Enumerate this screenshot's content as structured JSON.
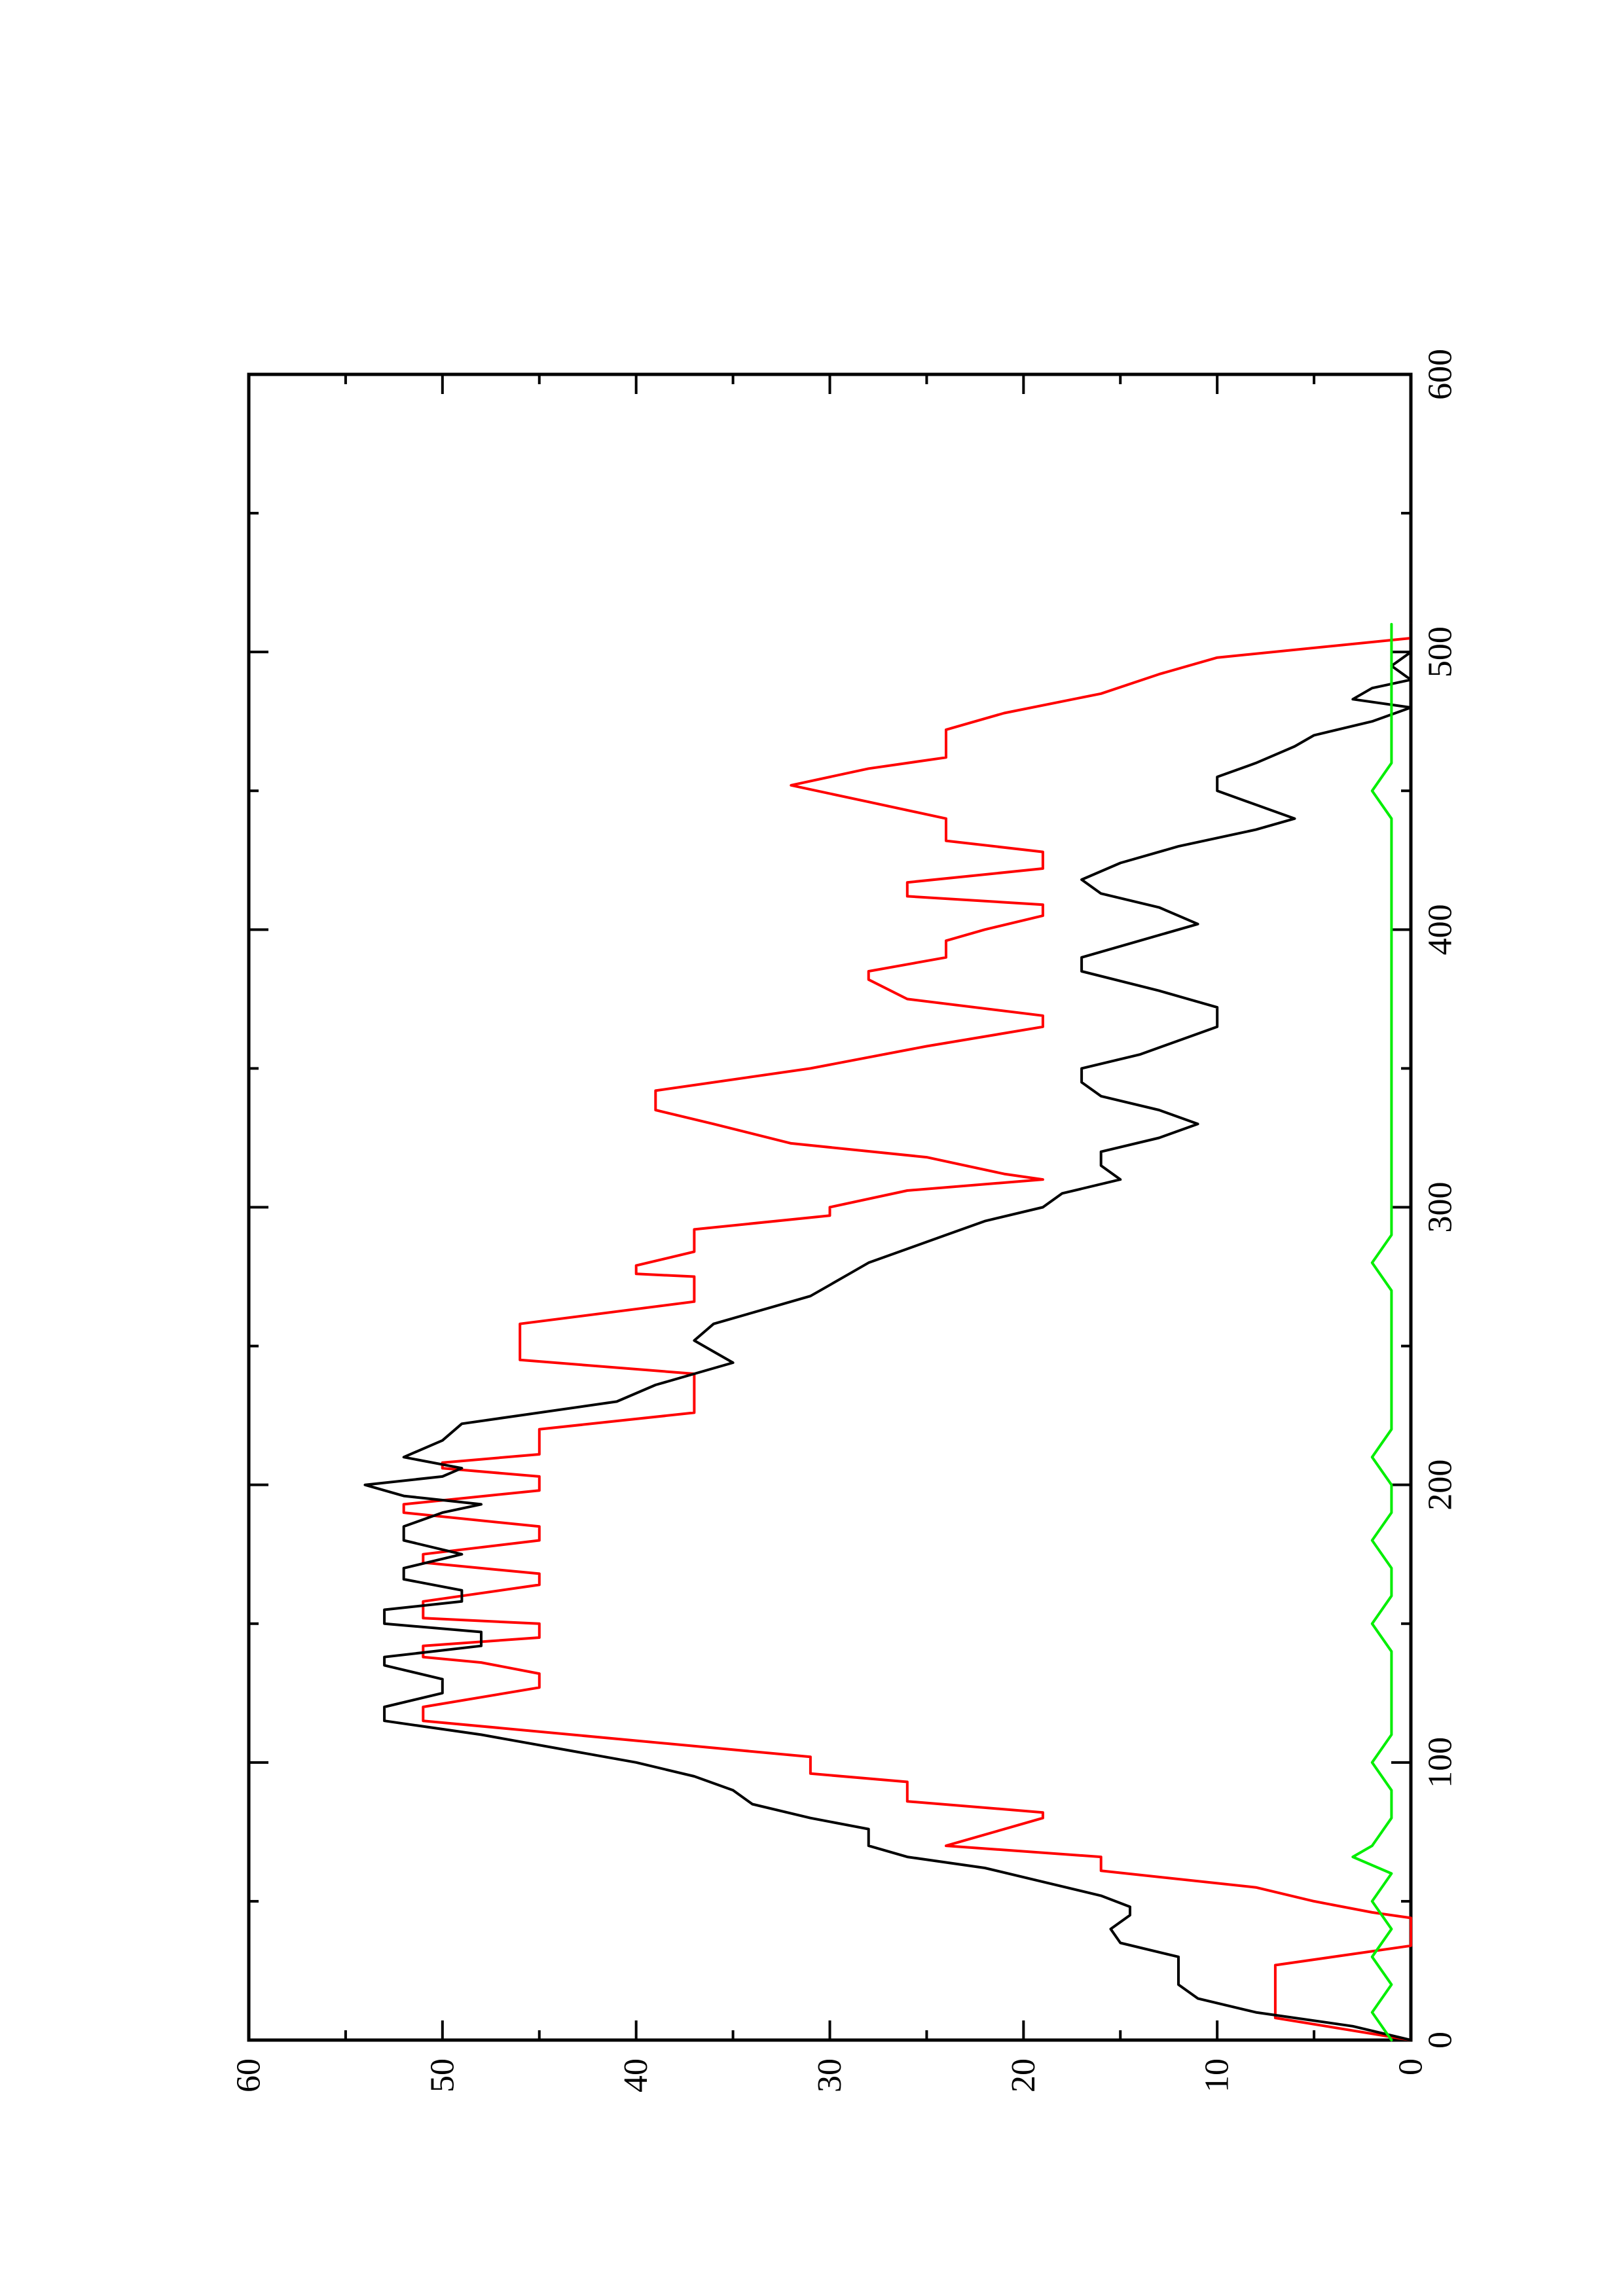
{
  "chart_data": {
    "type": "line",
    "orientation": "rotated-90-counterclockwise",
    "title": "",
    "xlabel": "",
    "ylabel": "",
    "xlim": [
      0,
      600
    ],
    "ylim": [
      0,
      60
    ],
    "x_ticks": [
      0,
      100,
      200,
      300,
      400,
      500,
      600
    ],
    "x_tick_labels": [
      "0",
      "100",
      "200",
      "300",
      "400",
      "500",
      "600"
    ],
    "y_ticks": [
      0,
      10,
      20,
      30,
      40,
      50,
      60
    ],
    "y_tick_labels": [
      "0",
      "10",
      "20",
      "30",
      "40",
      "50",
      "60"
    ],
    "x_minor_ticks": [
      50,
      150,
      250,
      350,
      450,
      550
    ],
    "y_minor_ticks": [
      5,
      15,
      25,
      35,
      45,
      55
    ],
    "grid": false,
    "legend": "none",
    "series": [
      {
        "color": "#ff0000",
        "points": [
          [
            0,
            0
          ],
          [
            8,
            7
          ],
          [
            27,
            7
          ],
          [
            34,
            0
          ],
          [
            44,
            0
          ],
          [
            46,
            2
          ],
          [
            50,
            5
          ],
          [
            55,
            8
          ],
          [
            61,
            16
          ],
          [
            66,
            16
          ],
          [
            70,
            24
          ],
          [
            80,
            19
          ],
          [
            82,
            19
          ],
          [
            86,
            26
          ],
          [
            93,
            26
          ],
          [
            96,
            31
          ],
          [
            102,
            31
          ],
          [
            115,
            51
          ],
          [
            120,
            51
          ],
          [
            127,
            45
          ],
          [
            132,
            45
          ],
          [
            136,
            48
          ],
          [
            138,
            51
          ],
          [
            142,
            51
          ],
          [
            145,
            45
          ],
          [
            150,
            45
          ],
          [
            152,
            51
          ],
          [
            158,
            51
          ],
          [
            164,
            45
          ],
          [
            168,
            45
          ],
          [
            172,
            51
          ],
          [
            175,
            51
          ],
          [
            180,
            45
          ],
          [
            185,
            45
          ],
          [
            190,
            52
          ],
          [
            193,
            52
          ],
          [
            198,
            45
          ],
          [
            203,
            45
          ],
          [
            206,
            50
          ],
          [
            208,
            50
          ],
          [
            211,
            45
          ],
          [
            220,
            45
          ],
          [
            226,
            37
          ],
          [
            240,
            37
          ],
          [
            245,
            46
          ],
          [
            258,
            46
          ],
          [
            266,
            37
          ],
          [
            275,
            37
          ],
          [
            276,
            40
          ],
          [
            279,
            40
          ],
          [
            284,
            37
          ],
          [
            292,
            37
          ],
          [
            297,
            30
          ],
          [
            300,
            30
          ],
          [
            306,
            26
          ],
          [
            310,
            19
          ],
          [
            312,
            21
          ],
          [
            318,
            25
          ],
          [
            323,
            32
          ],
          [
            330,
            36
          ],
          [
            335,
            39
          ],
          [
            342,
            39
          ],
          [
            350,
            31
          ],
          [
            358,
            25
          ],
          [
            365,
            19
          ],
          [
            369,
            19
          ],
          [
            375,
            26
          ],
          [
            382,
            28
          ],
          [
            385,
            28
          ],
          [
            390,
            24
          ],
          [
            396,
            24
          ],
          [
            400,
            22
          ],
          [
            405,
            19
          ],
          [
            409,
            19
          ],
          [
            412,
            26
          ],
          [
            417,
            26
          ],
          [
            422,
            19
          ],
          [
            428,
            19
          ],
          [
            432,
            24
          ],
          [
            435,
            24
          ],
          [
            440,
            24
          ],
          [
            446,
            28
          ],
          [
            452,
            32
          ],
          [
            458,
            28
          ],
          [
            462,
            24
          ],
          [
            468,
            24
          ],
          [
            472,
            24
          ],
          [
            478,
            21
          ],
          [
            485,
            16
          ],
          [
            492,
            13
          ],
          [
            498,
            10
          ],
          [
            505,
            0
          ],
          [
            510,
            0
          ]
        ]
      },
      {
        "color": "#000000",
        "points": [
          [
            0,
            0
          ],
          [
            5,
            3
          ],
          [
            10,
            8
          ],
          [
            15,
            11
          ],
          [
            20,
            12
          ],
          [
            30,
            12
          ],
          [
            35,
            15
          ],
          [
            40,
            15.5
          ],
          [
            45,
            14.5
          ],
          [
            48,
            14.5
          ],
          [
            52,
            16
          ],
          [
            57,
            19
          ],
          [
            62,
            22
          ],
          [
            66,
            26
          ],
          [
            70,
            28
          ],
          [
            76,
            28
          ],
          [
            80,
            31
          ],
          [
            85,
            34
          ],
          [
            90,
            35
          ],
          [
            95,
            37
          ],
          [
            100,
            40
          ],
          [
            105,
            44
          ],
          [
            110,
            48
          ],
          [
            115,
            53
          ],
          [
            120,
            53
          ],
          [
            125,
            50
          ],
          [
            130,
            50
          ],
          [
            135,
            53
          ],
          [
            138,
            53
          ],
          [
            142,
            48
          ],
          [
            147,
            48
          ],
          [
            150,
            53
          ],
          [
            155,
            53
          ],
          [
            158,
            49
          ],
          [
            162,
            49
          ],
          [
            166,
            52
          ],
          [
            170,
            52
          ],
          [
            175,
            49
          ],
          [
            180,
            52
          ],
          [
            185,
            52
          ],
          [
            190,
            50
          ],
          [
            193,
            48
          ],
          [
            196,
            52
          ],
          [
            200,
            54
          ],
          [
            203,
            50
          ],
          [
            206,
            49
          ],
          [
            210,
            52
          ],
          [
            216,
            50
          ],
          [
            222,
            49
          ],
          [
            230,
            41
          ],
          [
            236,
            39
          ],
          [
            240,
            37
          ],
          [
            244,
            35
          ],
          [
            248,
            36
          ],
          [
            252,
            37
          ],
          [
            258,
            36
          ],
          [
            264,
            33
          ],
          [
            268,
            31
          ],
          [
            272,
            30
          ],
          [
            276,
            29
          ],
          [
            280,
            28
          ],
          [
            285,
            26
          ],
          [
            290,
            24
          ],
          [
            295,
            22
          ],
          [
            300,
            19
          ],
          [
            305,
            18
          ],
          [
            310,
            15
          ],
          [
            315,
            16
          ],
          [
            320,
            16
          ],
          [
            325,
            13
          ],
          [
            330,
            11
          ],
          [
            335,
            13
          ],
          [
            340,
            16
          ],
          [
            345,
            17
          ],
          [
            350,
            17
          ],
          [
            355,
            14
          ],
          [
            360,
            12
          ],
          [
            365,
            10
          ],
          [
            372,
            10
          ],
          [
            378,
            13
          ],
          [
            385,
            17
          ],
          [
            390,
            17
          ],
          [
            396,
            14
          ],
          [
            402,
            11
          ],
          [
            408,
            13
          ],
          [
            413,
            16
          ],
          [
            418,
            17
          ],
          [
            424,
            15
          ],
          [
            430,
            12
          ],
          [
            436,
            8
          ],
          [
            440,
            6
          ],
          [
            445,
            8
          ],
          [
            450,
            10
          ],
          [
            455,
            10
          ],
          [
            460,
            8
          ],
          [
            466,
            6
          ],
          [
            470,
            5
          ],
          [
            475,
            2
          ],
          [
            480,
            0
          ],
          [
            483,
            3
          ],
          [
            487,
            2
          ],
          [
            490,
            0
          ],
          [
            495,
            1
          ],
          [
            500,
            0
          ],
          [
            510,
            0
          ]
        ]
      },
      {
        "color": "#00ee00",
        "points": [
          [
            0,
            1
          ],
          [
            10,
            2
          ],
          [
            20,
            1
          ],
          [
            30,
            2
          ],
          [
            40,
            1
          ],
          [
            50,
            2
          ],
          [
            60,
            1
          ],
          [
            66,
            3
          ],
          [
            70,
            2
          ],
          [
            80,
            1
          ],
          [
            90,
            1
          ],
          [
            100,
            2
          ],
          [
            110,
            1
          ],
          [
            120,
            1
          ],
          [
            130,
            1
          ],
          [
            140,
            1
          ],
          [
            150,
            2
          ],
          [
            160,
            1
          ],
          [
            170,
            1
          ],
          [
            180,
            2
          ],
          [
            190,
            1
          ],
          [
            200,
            1
          ],
          [
            210,
            2
          ],
          [
            220,
            1
          ],
          [
            230,
            1
          ],
          [
            240,
            1
          ],
          [
            250,
            1
          ],
          [
            260,
            1
          ],
          [
            270,
            1
          ],
          [
            280,
            2
          ],
          [
            290,
            1
          ],
          [
            300,
            1
          ],
          [
            310,
            1
          ],
          [
            320,
            1
          ],
          [
            330,
            1
          ],
          [
            340,
            1
          ],
          [
            350,
            1
          ],
          [
            360,
            1
          ],
          [
            370,
            1
          ],
          [
            380,
            1
          ],
          [
            390,
            1
          ],
          [
            400,
            1
          ],
          [
            410,
            1
          ],
          [
            420,
            1
          ],
          [
            430,
            1
          ],
          [
            440,
            1
          ],
          [
            450,
            2
          ],
          [
            460,
            1
          ],
          [
            470,
            1
          ],
          [
            480,
            1
          ],
          [
            490,
            1
          ],
          [
            500,
            1
          ],
          [
            510,
            1
          ]
        ]
      }
    ]
  }
}
